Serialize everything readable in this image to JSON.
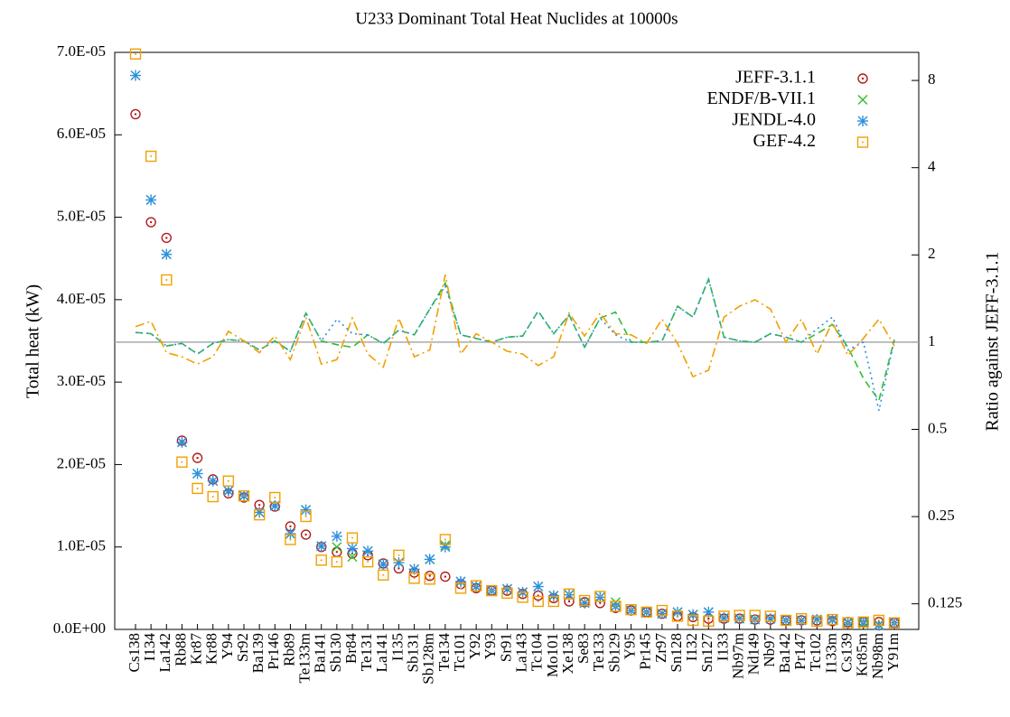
{
  "chart_data": {
    "type": "scatter",
    "title": "U233 Dominant Total Heat Nuclides at 10000s",
    "y_label": "Total heat (kW)",
    "y2_label": "Ratio against JEFF-3.1.1",
    "categories": [
      "Cs138",
      "I134",
      "La142",
      "Rb88",
      "Kr87",
      "Kr88",
      "Y94",
      "Sr92",
      "Ba139",
      "Pr146",
      "Rb89",
      "Te133m",
      "Ba141",
      "Sb130",
      "Br84",
      "Te131",
      "La141",
      "I135",
      "Sb131",
      "Sb128m",
      "Te134",
      "Tc101",
      "Y92",
      "Y93",
      "Sr91",
      "La143",
      "Tc104",
      "Mo101",
      "Xe138",
      "Se83",
      "Te133",
      "Sb129",
      "Y95",
      "Pr145",
      "Zr97",
      "Sn128",
      "I132",
      "Sn127",
      "I133",
      "Nb97m",
      "Nd149",
      "Nb97",
      "Ba142",
      "Pr147",
      "Tc102",
      "I133m",
      "Cs139",
      "Kr85m",
      "Nb98m",
      "Y91m"
    ],
    "ylim": [
      0,
      7e-05
    ],
    "yticks": [
      {
        "value": 0,
        "label": "0.0E+00"
      },
      {
        "value": 1e-05,
        "label": "1.0E-05"
      },
      {
        "value": 2e-05,
        "label": "2.0E-05"
      },
      {
        "value": 3e-05,
        "label": "3.0E-05"
      },
      {
        "value": 4e-05,
        "label": "4.0E-05"
      },
      {
        "value": 5e-05,
        "label": "5.0E-05"
      },
      {
        "value": 6e-05,
        "label": "6.0E-05"
      },
      {
        "value": 7e-05,
        "label": "7.0E-05"
      }
    ],
    "y2lim": [
      0.102,
      10.0
    ],
    "y2_log_base": 2,
    "y2ticks": [
      0.125,
      0.25,
      0.5,
      1,
      2,
      4,
      8
    ],
    "reference_y2": 1,
    "reference_color": "#aaaaaa",
    "legend": "top-right",
    "series": [
      {
        "name": "JEFF-3.1.1",
        "color": "#b01c1c",
        "marker": "circle-dot",
        "values": [
          6.25e-05,
          4.94e-05,
          4.75e-05,
          2.29e-05,
          2.08e-05,
          1.82e-05,
          1.65e-05,
          1.6e-05,
          1.51e-05,
          1.49e-05,
          1.25e-05,
          1.15e-05,
          1e-05,
          9.4e-06,
          9.2e-06,
          9e-06,
          8e-06,
          7.4e-06,
          6.9e-06,
          6.5e-06,
          6.4e-06,
          5.5e-06,
          5e-06,
          4.7e-06,
          4.7e-06,
          4.3e-06,
          4.1e-06,
          3.8e-06,
          3.4e-06,
          3.3e-06,
          3.2e-06,
          2.6e-06,
          2.3e-06,
          2.1e-06,
          1.9e-06,
          1.6e-06,
          1.5e-06,
          1.3e-06,
          1.3e-06,
          1.3e-06,
          1.2e-06,
          1.2e-06,
          1.1e-06,
          1.1e-06,
          1.1e-06,
          1e-06,
          9e-07,
          9e-07,
          9e-07,
          8e-07
        ]
      },
      {
        "name": "ENDF/B-VII.1",
        "color": "#2fbf2f",
        "marker": "cross",
        "values": [
          6.72e-05,
          5.21e-05,
          4.55e-05,
          2.27e-05,
          1.89e-05,
          1.8e-05,
          1.68e-05,
          1.62e-05,
          1.42e-05,
          1.5e-05,
          1.16e-05,
          1.45e-05,
          1.01e-05,
          1e-05,
          8.8e-06,
          9.5e-06,
          7.9e-06,
          8.1e-06,
          7.3e-06,
          8.5e-06,
          1.02e-05,
          5.8e-06,
          5.2e-06,
          4.7e-06,
          4.9e-06,
          4.5e-06,
          5.2e-06,
          4.1e-06,
          4.2e-06,
          3.2e-06,
          3.9e-06,
          3.3e-06,
          2.3e-06,
          2.1e-06,
          1.9e-06,
          2.1e-06,
          1.8e-06,
          2.1e-06,
          1.4e-06,
          1.3e-06,
          1.2e-06,
          1.3e-06,
          1.1e-06,
          1.1e-06,
          1.2e-06,
          1.15e-06,
          8.6e-07,
          7e-07,
          5.7e-07,
          8e-07
        ]
      },
      {
        "name": "JENDL-4.0",
        "color": "#2f8fe0",
        "marker": "asterisk",
        "values": [
          6.72e-05,
          5.21e-05,
          4.55e-05,
          2.27e-05,
          1.89e-05,
          1.8e-05,
          1.68e-05,
          1.62e-05,
          1.42e-05,
          1.5e-05,
          1.16e-05,
          1.45e-05,
          1.01e-05,
          1.13e-05,
          9.8e-06,
          9.5e-06,
          7.9e-06,
          8.1e-06,
          7.3e-06,
          8.5e-06,
          1e-05,
          5.8e-06,
          5.2e-06,
          4.7e-06,
          4.9e-06,
          4.5e-06,
          5.2e-06,
          4.1e-06,
          4.2e-06,
          3.2e-06,
          3.9e-06,
          2.8e-06,
          2.3e-06,
          2.1e-06,
          1.9e-06,
          2.1e-06,
          1.8e-06,
          2.1e-06,
          1.4e-06,
          1.3e-06,
          1.2e-06,
          1.3e-06,
          1.1e-06,
          1.1e-06,
          1.2e-06,
          1.2e-06,
          8e-07,
          9e-07,
          5e-07,
          8e-07
        ]
      },
      {
        "name": "GEF-4.2",
        "color": "#f0a000",
        "marker": "square-dot",
        "values": [
          6.98e-05,
          5.74e-05,
          4.24e-05,
          2.03e-05,
          1.71e-05,
          1.61e-05,
          1.8e-05,
          1.62e-05,
          1.39e-05,
          1.6e-05,
          1.09e-05,
          1.37e-05,
          8.4e-06,
          8.2e-06,
          1.11e-05,
          8.2e-06,
          6.6e-06,
          9e-06,
          6.2e-06,
          6.1e-06,
          1.09e-05,
          5e-06,
          5.3e-06,
          4.7e-06,
          4.4e-06,
          3.9e-06,
          3.4e-06,
          3.4e-06,
          4.3e-06,
          3.5e-06,
          4e-06,
          2.8e-06,
          2.4e-06,
          2.1e-06,
          2.3e-06,
          1.6e-06,
          1.1e-06,
          1e-06,
          1.6e-06,
          1.7e-06,
          1.7e-06,
          1.6e-06,
          1.1e-06,
          1.3e-06,
          1e-06,
          1.2e-06,
          8e-07,
          9e-07,
          1.1e-06,
          8e-07
        ]
      }
    ],
    "ratio_series": [
      {
        "color": "#2fbf2f",
        "dash": "8,5",
        "axis": "y2",
        "values": [
          1.08,
          1.07,
          0.97,
          0.99,
          0.91,
          0.99,
          1.02,
          1.01,
          0.94,
          1.01,
          0.93,
          1.26,
          1.01,
          0.98,
          0.96,
          1.06,
          0.99,
          1.1,
          1.06,
          1.3,
          1.6,
          1.06,
          1.03,
          1.0,
          1.04,
          1.05,
          1.28,
          1.07,
          1.24,
          0.96,
          1.21,
          1.27,
          1.0,
          1.0,
          1.01,
          1.33,
          1.22,
          1.65,
          1.04,
          1.01,
          1.0,
          1.07,
          1.04,
          1.0,
          1.07,
          1.15,
          0.96,
          0.75,
          0.63,
          1.02
        ]
      },
      {
        "color": "#2f8fe0",
        "dash": "2,4",
        "axis": "y2",
        "values": [
          1.08,
          1.07,
          0.97,
          0.99,
          0.91,
          0.99,
          1.02,
          1.01,
          0.94,
          1.01,
          0.93,
          1.26,
          1.01,
          1.2,
          1.07,
          1.06,
          0.99,
          1.1,
          1.06,
          1.3,
          1.56,
          1.06,
          1.03,
          1.0,
          1.04,
          1.05,
          1.28,
          1.07,
          1.24,
          0.96,
          1.21,
          1.06,
          1.0,
          1.0,
          1.01,
          1.33,
          1.22,
          1.65,
          1.04,
          1.01,
          1.0,
          1.07,
          1.04,
          1.0,
          1.11,
          1.22,
          0.94,
          1.0,
          0.58,
          1.02
        ]
      },
      {
        "color": "#f0a000",
        "dash": "10,4,2,4",
        "axis": "y2",
        "values": [
          1.13,
          1.18,
          0.92,
          0.89,
          0.84,
          0.89,
          1.09,
          1.01,
          0.92,
          1.05,
          0.87,
          1.22,
          0.84,
          0.87,
          1.21,
          0.91,
          0.82,
          1.21,
          0.89,
          0.94,
          1.71,
          0.91,
          1.07,
          1.0,
          0.93,
          0.91,
          0.83,
          0.89,
          1.26,
          1.05,
          1.26,
          1.07,
          1.06,
          0.99,
          1.2,
          0.99,
          0.76,
          0.8,
          1.22,
          1.33,
          1.4,
          1.3,
          1.0,
          1.2,
          0.91,
          1.17,
          0.9,
          1.03,
          1.2,
          0.97
        ]
      }
    ]
  }
}
